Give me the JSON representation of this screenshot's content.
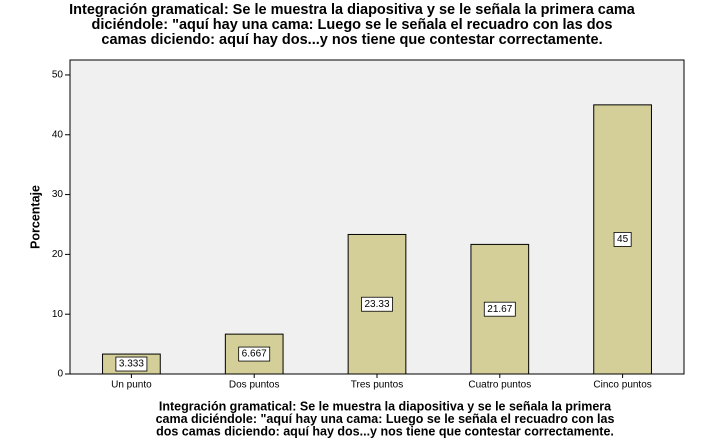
{
  "chart_data": {
    "type": "bar",
    "title": [
      "Integración gramatical: Se le muestra la diapositiva y se le señala la primera cama",
      "diciéndole: \"aquí hay una cama: Luego se le señala el recuadro con las dos",
      "camas diciendo: aquí hay dos...y nos tiene que contestar correctamente."
    ],
    "x_label": [
      "Integración gramatical: Se le muestra la diapositiva y se le señala la primera",
      "cama diciéndole: \"aquí hay una cama: Luego se le señala el recuadro con las",
      "dos camas diciendo: aquí hay dos...y nos tiene que contestar correctamente."
    ],
    "y_label": "Porcentaje",
    "categories": [
      "Un punto",
      "Dos puntos",
      "Tres puntos",
      "Cuatro puntos",
      "Cinco puntos"
    ],
    "values": [
      3.333,
      6.667,
      23.33,
      21.67,
      45
    ],
    "color": "#d4cf99",
    "ylim": [
      0,
      52.5
    ],
    "yticks": [
      0,
      10,
      20,
      30,
      40,
      50
    ]
  }
}
